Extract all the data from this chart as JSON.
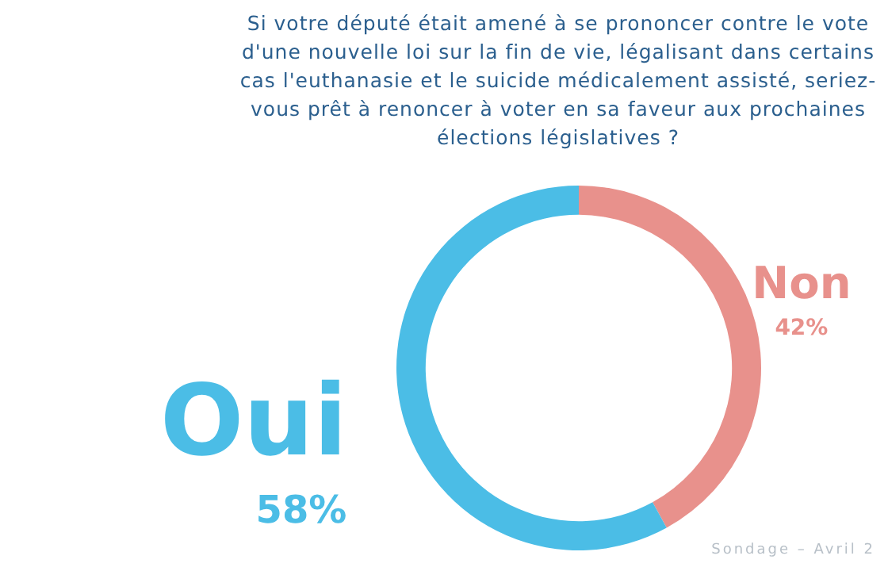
{
  "chart_data": {
    "type": "donut",
    "title": "Si votre député était amené à se prononcer contre le vote d'une nouvelle loi sur la fin de vie, légalisant dans certains cas l'euthanasie et le suicide médicalement assisté, seriez-vous prêt à renoncer à voter en sa faveur aux prochaines élections législatives ?",
    "categories": [
      "Non",
      "Oui"
    ],
    "values": [
      42,
      58
    ],
    "colors": [
      "#e8918c",
      "#4bbde6"
    ],
    "value_labels": [
      "42%",
      "58%"
    ],
    "annotations": [
      "Sondage – Avril 2"
    ]
  }
}
